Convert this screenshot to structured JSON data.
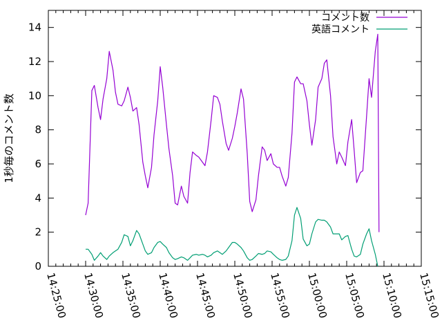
{
  "chart_data": {
    "type": "line",
    "title": "",
    "xlabel": "",
    "ylabel": "1秒毎のコメント数",
    "xlim": [
      "14:25:00",
      "15:15:00"
    ],
    "ylim": [
      0,
      15
    ],
    "grid": false,
    "legend_position": "top-right",
    "x_ticks": [
      "14:25:00",
      "14:30:00",
      "14:35:00",
      "14:40:00",
      "14:45:00",
      "14:50:00",
      "14:55:00",
      "15:00:00",
      "15:05:00",
      "15:10:00",
      "15:15:00"
    ],
    "y_ticks": [
      0,
      2,
      4,
      6,
      8,
      10,
      12,
      14
    ],
    "series": [
      {
        "name": "コメント数",
        "color": "#9400d3",
        "points": [
          [
            "14:30:00",
            3.0
          ],
          [
            "14:30:20",
            3.7
          ],
          [
            "14:30:50",
            10.3
          ],
          [
            "14:31:10",
            10.6
          ],
          [
            "14:31:40",
            9.3
          ],
          [
            "14:32:00",
            8.6
          ],
          [
            "14:32:20",
            9.8
          ],
          [
            "14:32:50",
            11.0
          ],
          [
            "14:33:10",
            12.6
          ],
          [
            "14:33:40",
            11.5
          ],
          [
            "14:34:00",
            10.2
          ],
          [
            "14:34:20",
            9.5
          ],
          [
            "14:34:50",
            9.4
          ],
          [
            "14:35:10",
            9.7
          ],
          [
            "14:35:40",
            10.5
          ],
          [
            "14:36:00",
            9.9
          ],
          [
            "14:36:20",
            9.1
          ],
          [
            "14:36:50",
            9.3
          ],
          [
            "14:37:10",
            8.3
          ],
          [
            "14:37:40",
            6.1
          ],
          [
            "14:38:00",
            5.3
          ],
          [
            "14:38:20",
            4.6
          ],
          [
            "14:38:50",
            5.8
          ],
          [
            "14:39:10",
            7.7
          ],
          [
            "14:39:40",
            9.7
          ],
          [
            "14:40:00",
            11.7
          ],
          [
            "14:40:20",
            10.5
          ],
          [
            "14:40:50",
            8.3
          ],
          [
            "14:41:10",
            6.9
          ],
          [
            "14:41:40",
            5.3
          ],
          [
            "14:42:00",
            3.7
          ],
          [
            "14:42:20",
            3.6
          ],
          [
            "14:42:50",
            4.7
          ],
          [
            "14:43:10",
            4.1
          ],
          [
            "14:43:40",
            3.7
          ],
          [
            "14:44:00",
            5.5
          ],
          [
            "14:44:20",
            6.7
          ],
          [
            "14:44:50",
            6.5
          ],
          [
            "14:45:10",
            6.4
          ],
          [
            "14:45:40",
            6.1
          ],
          [
            "14:46:00",
            5.9
          ],
          [
            "14:46:20",
            6.7
          ],
          [
            "14:46:50",
            8.6
          ],
          [
            "14:47:10",
            10.0
          ],
          [
            "14:47:40",
            9.9
          ],
          [
            "14:48:00",
            9.5
          ],
          [
            "14:48:20",
            8.5
          ],
          [
            "14:48:50",
            7.2
          ],
          [
            "14:49:10",
            6.8
          ],
          [
            "14:49:40",
            7.5
          ],
          [
            "14:50:00",
            8.2
          ],
          [
            "14:50:20",
            9.0
          ],
          [
            "14:50:50",
            10.4
          ],
          [
            "14:51:10",
            9.8
          ],
          [
            "14:51:40",
            6.6
          ],
          [
            "14:52:00",
            3.8
          ],
          [
            "14:52:20",
            3.2
          ],
          [
            "14:52:50",
            3.9
          ],
          [
            "14:53:10",
            5.3
          ],
          [
            "14:53:40",
            7.0
          ],
          [
            "14:54:00",
            6.8
          ],
          [
            "14:54:20",
            6.2
          ],
          [
            "14:54:50",
            6.6
          ],
          [
            "14:55:10",
            6.0
          ],
          [
            "14:55:40",
            5.8
          ],
          [
            "14:56:00",
            5.8
          ],
          [
            "14:56:20",
            5.3
          ],
          [
            "14:56:50",
            4.7
          ],
          [
            "14:57:10",
            5.2
          ],
          [
            "14:57:40",
            7.8
          ],
          [
            "14:58:00",
            10.8
          ],
          [
            "14:58:20",
            11.1
          ],
          [
            "14:58:50",
            10.7
          ],
          [
            "14:59:10",
            10.7
          ],
          [
            "14:59:40",
            9.7
          ],
          [
            "15:00:00",
            8.3
          ],
          [
            "15:00:20",
            7.1
          ],
          [
            "15:00:50",
            8.6
          ],
          [
            "15:01:10",
            10.5
          ],
          [
            "15:01:40",
            11.0
          ],
          [
            "15:02:00",
            11.9
          ],
          [
            "15:02:20",
            12.1
          ],
          [
            "15:02:50",
            10.0
          ],
          [
            "15:03:10",
            7.6
          ],
          [
            "15:03:40",
            6.0
          ],
          [
            "15:04:00",
            6.7
          ],
          [
            "15:04:20",
            6.4
          ],
          [
            "15:04:50",
            5.9
          ],
          [
            "15:05:10",
            7.3
          ],
          [
            "15:05:40",
            8.6
          ],
          [
            "15:06:00",
            6.8
          ],
          [
            "15:06:20",
            4.9
          ],
          [
            "15:06:50",
            5.5
          ],
          [
            "15:07:10",
            5.6
          ],
          [
            "15:07:40",
            8.8
          ],
          [
            "15:08:00",
            11.0
          ],
          [
            "15:08:20",
            9.9
          ],
          [
            "15:08:50",
            12.6
          ],
          [
            "15:09:10",
            13.6
          ],
          [
            "15:09:20",
            2.0
          ]
        ]
      },
      {
        "name": "英語コメント",
        "color": "#009e73",
        "points": [
          [
            "14:30:00",
            1.0
          ],
          [
            "14:30:20",
            1.0
          ],
          [
            "14:30:50",
            0.7
          ],
          [
            "14:31:10",
            0.35
          ],
          [
            "14:31:40",
            0.6
          ],
          [
            "14:32:00",
            0.8
          ],
          [
            "14:32:20",
            0.6
          ],
          [
            "14:32:50",
            0.4
          ],
          [
            "14:33:10",
            0.6
          ],
          [
            "14:33:40",
            0.8
          ],
          [
            "14:34:00",
            0.9
          ],
          [
            "14:34:20",
            1.0
          ],
          [
            "14:34:50",
            1.4
          ],
          [
            "14:35:10",
            1.85
          ],
          [
            "14:35:40",
            1.75
          ],
          [
            "14:36:00",
            1.2
          ],
          [
            "14:36:20",
            1.5
          ],
          [
            "14:36:50",
            2.1
          ],
          [
            "14:37:10",
            1.9
          ],
          [
            "14:37:40",
            1.3
          ],
          [
            "14:38:00",
            0.9
          ],
          [
            "14:38:20",
            0.7
          ],
          [
            "14:38:50",
            0.8
          ],
          [
            "14:39:10",
            1.1
          ],
          [
            "14:39:40",
            1.4
          ],
          [
            "14:40:00",
            1.45
          ],
          [
            "14:40:20",
            1.3
          ],
          [
            "14:40:50",
            1.1
          ],
          [
            "14:41:10",
            0.8
          ],
          [
            "14:41:40",
            0.5
          ],
          [
            "14:42:00",
            0.4
          ],
          [
            "14:42:20",
            0.45
          ],
          [
            "14:42:50",
            0.55
          ],
          [
            "14:43:10",
            0.5
          ],
          [
            "14:43:40",
            0.35
          ],
          [
            "14:44:00",
            0.5
          ],
          [
            "14:44:20",
            0.65
          ],
          [
            "14:44:50",
            0.7
          ],
          [
            "14:45:10",
            0.65
          ],
          [
            "14:45:40",
            0.7
          ],
          [
            "14:46:00",
            0.65
          ],
          [
            "14:46:20",
            0.55
          ],
          [
            "14:46:50",
            0.65
          ],
          [
            "14:47:10",
            0.8
          ],
          [
            "14:47:40",
            0.9
          ],
          [
            "14:48:00",
            0.8
          ],
          [
            "14:48:20",
            0.7
          ],
          [
            "14:48:50",
            0.9
          ],
          [
            "14:49:10",
            1.1
          ],
          [
            "14:49:40",
            1.4
          ],
          [
            "14:50:00",
            1.4
          ],
          [
            "14:50:20",
            1.3
          ],
          [
            "14:50:50",
            1.1
          ],
          [
            "14:51:10",
            0.9
          ],
          [
            "14:51:40",
            0.5
          ],
          [
            "14:52:00",
            0.35
          ],
          [
            "14:52:20",
            0.4
          ],
          [
            "14:52:50",
            0.6
          ],
          [
            "14:53:10",
            0.75
          ],
          [
            "14:53:40",
            0.7
          ],
          [
            "14:54:00",
            0.75
          ],
          [
            "14:54:20",
            0.9
          ],
          [
            "14:54:50",
            0.85
          ],
          [
            "14:55:10",
            0.7
          ],
          [
            "14:55:40",
            0.5
          ],
          [
            "14:56:00",
            0.4
          ],
          [
            "14:56:20",
            0.35
          ],
          [
            "14:56:50",
            0.4
          ],
          [
            "14:57:10",
            0.6
          ],
          [
            "14:57:40",
            1.5
          ],
          [
            "14:58:00",
            3.0
          ],
          [
            "14:58:20",
            3.45
          ],
          [
            "14:58:50",
            2.8
          ],
          [
            "14:59:10",
            1.6
          ],
          [
            "14:59:40",
            1.2
          ],
          [
            "15:00:00",
            1.3
          ],
          [
            "15:00:20",
            1.9
          ],
          [
            "15:00:50",
            2.6
          ],
          [
            "15:01:10",
            2.75
          ],
          [
            "15:01:40",
            2.7
          ],
          [
            "15:02:00",
            2.7
          ],
          [
            "15:02:20",
            2.6
          ],
          [
            "15:02:50",
            2.3
          ],
          [
            "15:03:10",
            1.9
          ],
          [
            "15:03:40",
            1.9
          ],
          [
            "15:04:00",
            1.9
          ],
          [
            "15:04:20",
            1.55
          ],
          [
            "15:04:50",
            1.75
          ],
          [
            "15:05:10",
            1.8
          ],
          [
            "15:05:40",
            1.0
          ],
          [
            "15:06:00",
            0.6
          ],
          [
            "15:06:20",
            0.55
          ],
          [
            "15:06:50",
            0.7
          ],
          [
            "15:07:10",
            1.3
          ],
          [
            "15:07:40",
            1.9
          ],
          [
            "15:08:00",
            2.2
          ],
          [
            "15:08:20",
            1.5
          ],
          [
            "15:08:50",
            0.7
          ],
          [
            "15:09:10",
            0.0
          ]
        ]
      }
    ]
  }
}
